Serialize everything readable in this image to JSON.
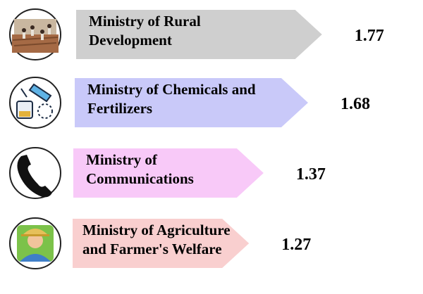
{
  "chart_data": {
    "type": "bar",
    "title": "",
    "categories": [
      [
        "Ministry of Rural",
        "Development"
      ],
      [
        "Ministry of Chemicals and",
        "Fertilizers"
      ],
      [
        "Ministry of",
        "Communications"
      ],
      [
        "Ministry of Agriculture",
        "and Farmer's Welfare"
      ]
    ],
    "values": [
      1.77,
      1.68,
      1.37,
      1.27
    ],
    "value_labels": [
      "1.77",
      "1.68",
      "1.37",
      "1.27"
    ],
    "icons": [
      "farm-field-icon",
      "chemistry-lab-icon",
      "telephone-icon",
      "farmer-icon"
    ],
    "colors": [
      "#cfcfcf",
      "#c9c9f9",
      "#f8c9f8",
      "#f9cfcf"
    ]
  }
}
